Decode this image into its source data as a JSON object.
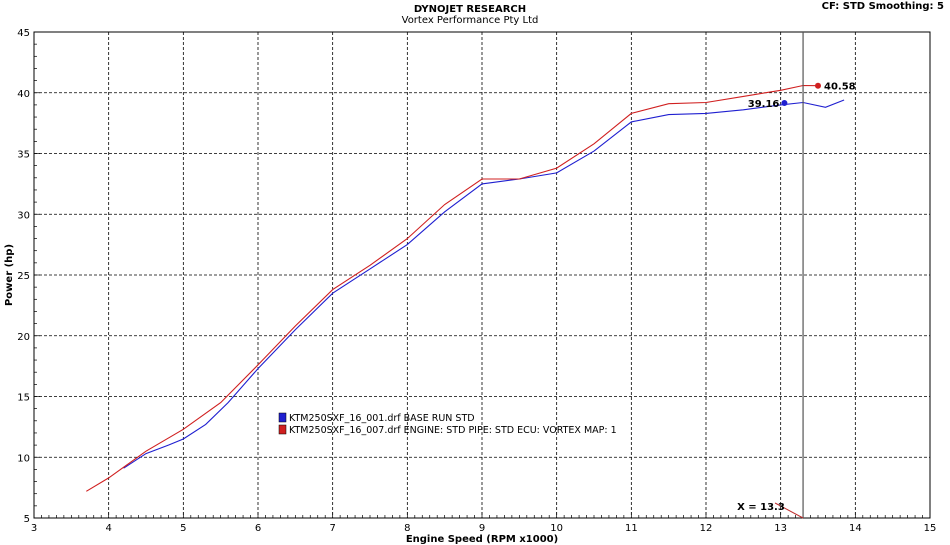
{
  "header": {
    "title": "DYNOJET RESEARCH",
    "subtitle": "Vortex Performance Pty Ltd",
    "settings": "CF: STD  Smoothing: 5"
  },
  "chart_data": {
    "type": "line",
    "xlabel": "Engine Speed (RPM x1000)",
    "ylabel": "Power (hp)",
    "xlim": [
      3,
      15
    ],
    "ylim": [
      5,
      45
    ],
    "xticks": [
      3,
      4,
      5,
      6,
      7,
      8,
      9,
      10,
      11,
      12,
      13,
      14,
      15
    ],
    "yticks": [
      5,
      10,
      15,
      20,
      25,
      30,
      35,
      40,
      45
    ],
    "grid": true,
    "legend_position": "center-left",
    "series": [
      {
        "name": "KTM250SXF_16_001.drf BASE RUN STD",
        "color": "#1f1fd0",
        "x": [
          4.2,
          4.5,
          4.8,
          5.0,
          5.3,
          5.6,
          6.0,
          6.5,
          7.0,
          7.5,
          8.0,
          8.5,
          9.0,
          9.5,
          10.0,
          10.5,
          11.0,
          11.5,
          12.0,
          12.5,
          13.0,
          13.3,
          13.6,
          13.85
        ],
        "y": [
          9.1,
          10.3,
          11.0,
          11.5,
          12.7,
          14.5,
          17.3,
          20.5,
          23.5,
          25.5,
          27.5,
          30.2,
          32.5,
          32.9,
          33.4,
          35.2,
          37.6,
          38.2,
          38.3,
          38.6,
          39.0,
          39.2,
          38.8,
          39.4
        ]
      },
      {
        "name": "KTM250SXF_16_007.drf ENGINE: STD PIPE: STD ECU: VORTEX MAP: 1",
        "color": "#d02020",
        "x": [
          3.7,
          4.0,
          4.5,
          5.0,
          5.5,
          6.0,
          6.5,
          7.0,
          7.5,
          8.0,
          8.5,
          9.0,
          9.5,
          10.0,
          10.5,
          11.0,
          11.5,
          12.0,
          12.5,
          13.0,
          13.3,
          13.5
        ],
        "y": [
          7.2,
          8.3,
          10.5,
          12.3,
          14.5,
          17.6,
          20.8,
          23.8,
          25.8,
          28.0,
          30.8,
          32.9,
          32.9,
          33.8,
          35.8,
          38.3,
          39.1,
          39.2,
          39.7,
          40.2,
          40.6,
          40.58
        ]
      }
    ],
    "markers": [
      {
        "label": "39.16",
        "x": 13.05,
        "y": 39.16,
        "color": "#1f1fd0"
      },
      {
        "label": "40.58",
        "x": 13.5,
        "y": 40.58,
        "color": "#d02020"
      }
    ],
    "cursor": {
      "x": 13.3,
      "label": "X = 13.3"
    }
  }
}
